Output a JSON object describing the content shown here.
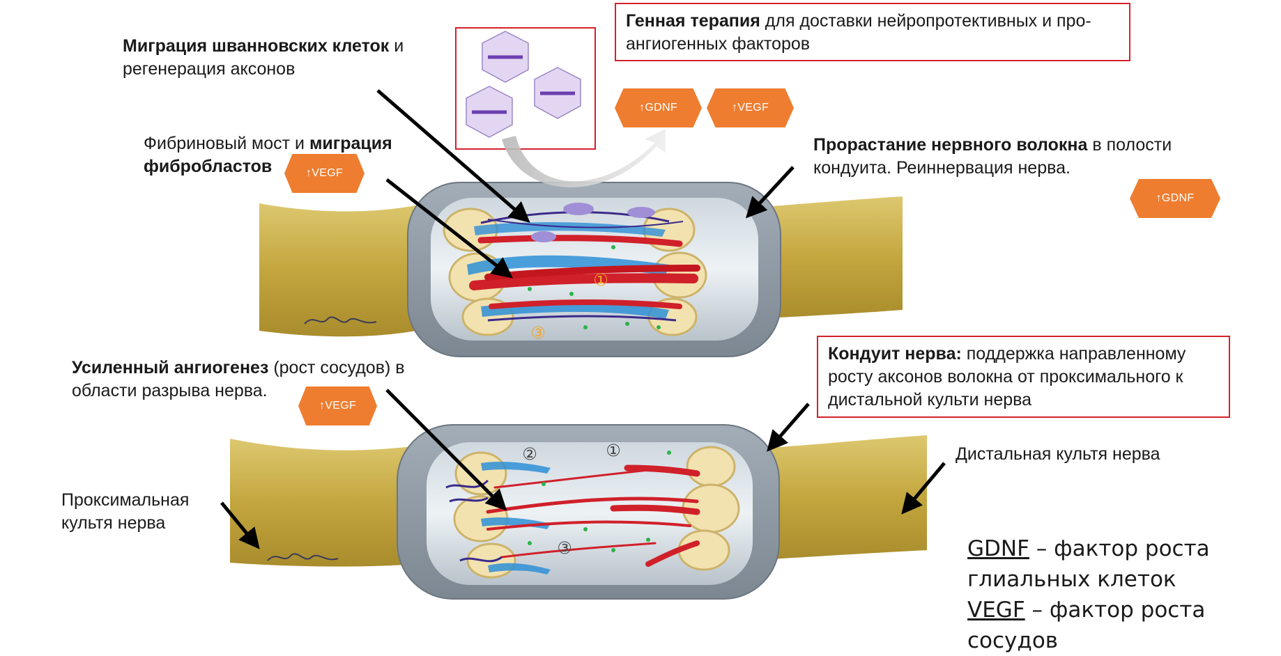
{
  "labels": {
    "schwann_bold": "Миграция шванновских клеток",
    "schwann_rest": " и регенерация аксонов",
    "fibrin_plain": "Фибриновый мост и ",
    "fibrin_bold": "миграция фибробластов",
    "sprout_bold": "Прорастание нервного волокна",
    "sprout_rest": " в полости кондуита. Реиннервация нерва.",
    "angio_bold": "Усиленный ангиогенез",
    "angio_rest": " (рост сосудов) в области разрыва нерва.",
    "proximal": "Проксимальная культя нерва",
    "distal": "Дистальная культя нерва"
  },
  "boxes": {
    "gene_bold": "Генная терапия",
    "gene_rest": " для доставки нейропротективных и про-ангиогенных факторов",
    "conduit_bold": "Кондуит нерва:",
    "conduit_rest": " поддержка направленному росту аксонов волокна от  проксимального к дистальной культи нерва"
  },
  "tags": {
    "gdnf_top": "↑GDNF",
    "vegf_top": "↑VEGF",
    "vegf_fibrin": "↑VEGF",
    "gdnf_right": "↑GDNF",
    "vegf_angio": "↑VEGF"
  },
  "markers": {
    "top_1": "①",
    "top_3": "③",
    "bottom_1": "①",
    "bottom_2": "②",
    "bottom_3": "③"
  },
  "legend": {
    "gdnf_term": "GDNF",
    "gdnf_def": " – фактор роста глиальных клеток",
    "vegf_term": "VEGF",
    "vegf_def": " – фактор роста сосудов"
  },
  "colors": {
    "nerve": "#c9b04b",
    "conduit": "#8f9aa5",
    "tag": "#ee7d30",
    "box_border": "#d4212b",
    "axon": "#d0202a",
    "schwann_cell": "#2e8fd6"
  }
}
